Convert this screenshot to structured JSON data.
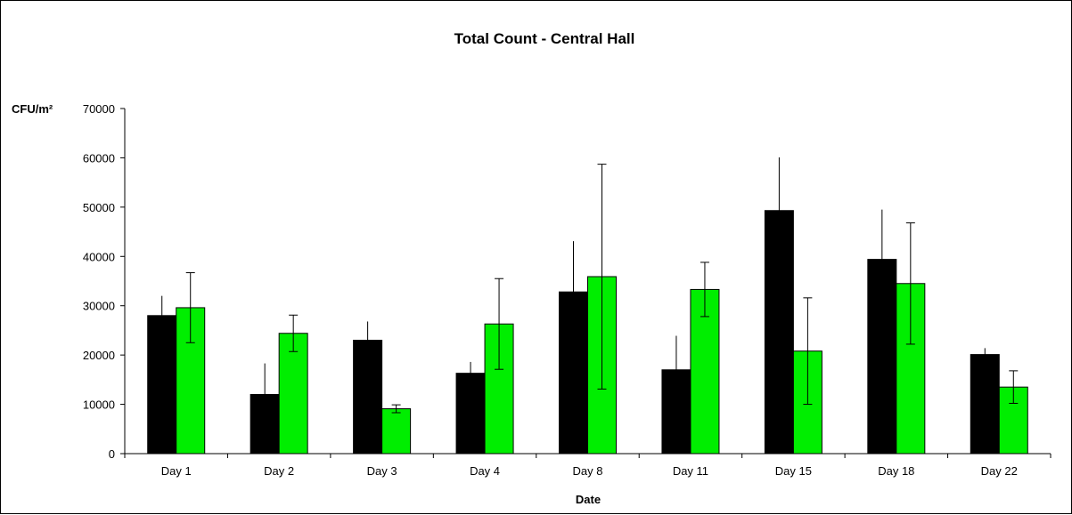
{
  "chart_data": {
    "type": "bar",
    "title": "Total Count - Central Hall",
    "ylabel": "CFU/m²",
    "xlabel": "Date",
    "ylim": [
      0,
      70000
    ],
    "yticks": [
      0,
      10000,
      20000,
      30000,
      40000,
      50000,
      60000,
      70000
    ],
    "grid": false,
    "legend": "none",
    "categories": [
      "Day 1",
      "Day 2",
      "Day 3",
      "Day 4",
      "Day 8",
      "Day 11",
      "Day 15",
      "Day 18",
      "Day 22"
    ],
    "series": [
      {
        "color": "#000000",
        "values": [
          28000,
          12000,
          23000,
          16300,
          32800,
          17000,
          49300,
          39400,
          20100
        ],
        "errors": [
          4000,
          6300,
          3800,
          2300,
          10300,
          6900,
          10800,
          10100,
          1300
        ]
      },
      {
        "color": "#00ee00",
        "values": [
          29600,
          24400,
          9100,
          26300,
          35900,
          33300,
          20800,
          34500,
          13500
        ],
        "errors": [
          7100,
          3700,
          800,
          9200,
          22800,
          5500,
          10800,
          12300,
          3300
        ]
      }
    ]
  }
}
